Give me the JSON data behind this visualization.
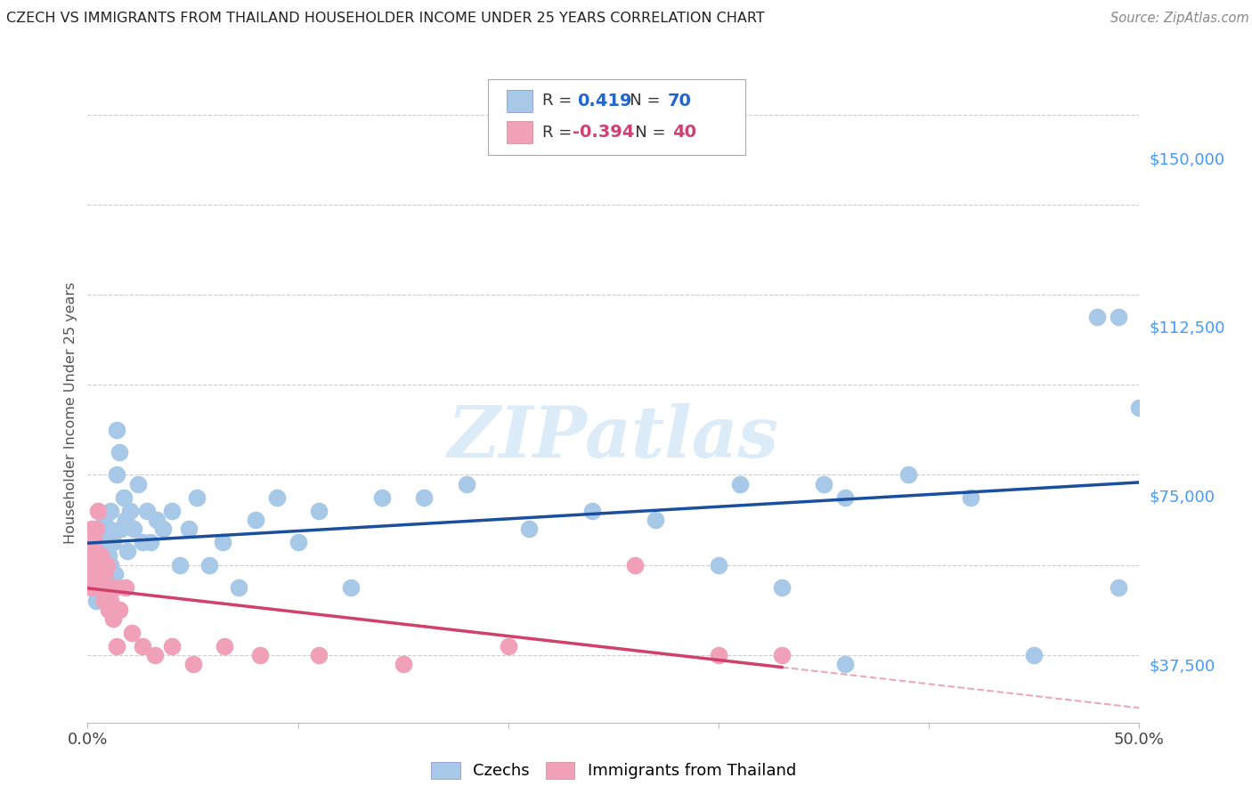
{
  "title": "CZECH VS IMMIGRANTS FROM THAILAND HOUSEHOLDER INCOME UNDER 25 YEARS CORRELATION CHART",
  "source": "Source: ZipAtlas.com",
  "ylabel": "Householder Income Under 25 years",
  "xlim": [
    0.0,
    0.5
  ],
  "ylim": [
    25000,
    162500
  ],
  "xticks": [
    0.0,
    0.1,
    0.2,
    0.3,
    0.4,
    0.5
  ],
  "xticklabels": [
    "0.0%",
    "",
    "",
    "",
    "",
    "50.0%"
  ],
  "yticks": [
    37500,
    75000,
    112500,
    150000
  ],
  "yticklabels": [
    "$37,500",
    "$75,000",
    "$112,500",
    "$150,000"
  ],
  "czechs_color": "#a8c8e8",
  "thailand_color": "#f0a0b8",
  "czechs_line_color": "#1a4f9e",
  "thailand_line_color": "#d0406a",
  "watermark": "ZIPatlas",
  "legend_R_czech": "0.419",
  "legend_N_czech": "70",
  "legend_R_thailand": "-0.394",
  "legend_N_thailand": "40",
  "czechs_x": [
    0.001,
    0.002,
    0.002,
    0.003,
    0.003,
    0.004,
    0.004,
    0.005,
    0.005,
    0.006,
    0.006,
    0.006,
    0.007,
    0.007,
    0.008,
    0.008,
    0.009,
    0.009,
    0.01,
    0.01,
    0.011,
    0.011,
    0.012,
    0.013,
    0.014,
    0.014,
    0.015,
    0.016,
    0.017,
    0.018,
    0.019,
    0.02,
    0.022,
    0.024,
    0.026,
    0.028,
    0.03,
    0.033,
    0.036,
    0.04,
    0.044,
    0.048,
    0.052,
    0.058,
    0.064,
    0.072,
    0.08,
    0.09,
    0.1,
    0.11,
    0.125,
    0.14,
    0.16,
    0.18,
    0.21,
    0.24,
    0.27,
    0.31,
    0.35,
    0.39,
    0.42,
    0.45,
    0.48,
    0.49,
    0.3,
    0.33,
    0.36,
    0.49,
    0.36,
    0.5
  ],
  "czechs_y": [
    58000,
    62000,
    55000,
    65000,
    60000,
    58000,
    52000,
    63000,
    57000,
    68000,
    62000,
    55000,
    65000,
    60000,
    70000,
    63000,
    58000,
    55000,
    68000,
    62000,
    72000,
    60000,
    65000,
    58000,
    90000,
    80000,
    85000,
    68000,
    75000,
    70000,
    63000,
    72000,
    68000,
    78000,
    65000,
    72000,
    65000,
    70000,
    68000,
    72000,
    60000,
    68000,
    75000,
    60000,
    65000,
    55000,
    70000,
    75000,
    65000,
    72000,
    55000,
    75000,
    75000,
    78000,
    68000,
    72000,
    70000,
    78000,
    78000,
    80000,
    75000,
    40000,
    115000,
    115000,
    60000,
    55000,
    75000,
    55000,
    38000,
    95000
  ],
  "thailand_x": [
    0.001,
    0.001,
    0.002,
    0.002,
    0.003,
    0.003,
    0.004,
    0.004,
    0.005,
    0.005,
    0.005,
    0.006,
    0.006,
    0.007,
    0.007,
    0.008,
    0.008,
    0.009,
    0.009,
    0.01,
    0.01,
    0.011,
    0.012,
    0.013,
    0.014,
    0.015,
    0.018,
    0.021,
    0.026,
    0.032,
    0.04,
    0.05,
    0.065,
    0.082,
    0.11,
    0.15,
    0.2,
    0.26,
    0.3,
    0.33
  ],
  "thailand_y": [
    62000,
    58000,
    68000,
    55000,
    65000,
    60000,
    68000,
    55000,
    62000,
    58000,
    72000,
    55000,
    62000,
    58000,
    55000,
    58000,
    52000,
    60000,
    55000,
    55000,
    50000,
    52000,
    48000,
    55000,
    42000,
    50000,
    55000,
    45000,
    42000,
    40000,
    42000,
    38000,
    42000,
    40000,
    40000,
    38000,
    42000,
    60000,
    40000,
    40000
  ]
}
